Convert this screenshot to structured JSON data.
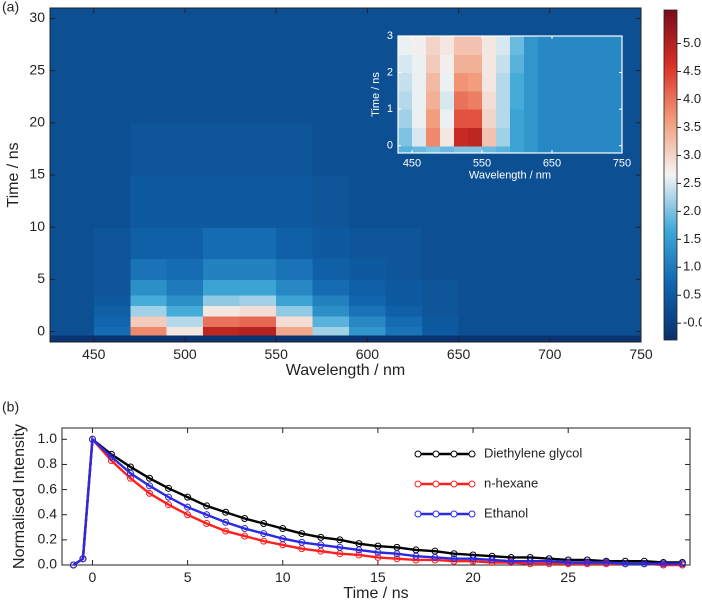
{
  "chart_data": [
    {
      "type": "heatmap",
      "panel_label": "(a)",
      "xlabel": "Wavelength / nm",
      "ylabel": "Time / ns",
      "xlim": [
        426,
        750
      ],
      "ylim": [
        -1,
        31
      ],
      "xticks": [
        450,
        500,
        550,
        600,
        650,
        700,
        750
      ],
      "yticks": [
        0,
        5,
        10,
        15,
        20,
        25,
        30
      ],
      "xbins": [
        426,
        450,
        470,
        490,
        510,
        530,
        550,
        570,
        590,
        610,
        630,
        650,
        670,
        690,
        710,
        730,
        750
      ],
      "ybins": [
        -1,
        -0.3,
        0.5,
        1.5,
        2.5,
        3.5,
        5,
        7,
        10,
        15,
        20,
        31
      ],
      "z": [
        [
          -0.2,
          -0.2,
          -0.2,
          -0.2,
          -0.2,
          -0.2,
          -0.2,
          -0.2,
          -0.2,
          -0.2,
          -0.2,
          -0.2,
          -0.2,
          -0.2,
          -0.2,
          -0.2
        ],
        [
          0.3,
          0.8,
          3.8,
          2.8,
          4.9,
          5.0,
          3.5,
          2.2,
          1.4,
          0.9,
          0.5,
          0.3,
          0.3,
          0.3,
          0.3,
          0.3
        ],
        [
          0.3,
          0.7,
          3.1,
          2.3,
          4.0,
          4.1,
          2.9,
          1.8,
          1.2,
          0.8,
          0.5,
          0.3,
          0.3,
          0.3,
          0.3,
          0.3
        ],
        [
          0.3,
          0.6,
          2.2,
          1.7,
          2.8,
          2.9,
          2.1,
          1.3,
          0.9,
          0.6,
          0.4,
          0.3,
          0.3,
          0.3,
          0.3,
          0.3
        ],
        [
          0.3,
          0.5,
          1.7,
          1.3,
          2.1,
          2.2,
          1.6,
          1.1,
          0.7,
          0.5,
          0.4,
          0.3,
          0.3,
          0.3,
          0.3,
          0.3
        ],
        [
          0.3,
          0.4,
          1.3,
          1.0,
          1.6,
          1.6,
          1.2,
          0.8,
          0.6,
          0.5,
          0.4,
          0.3,
          0.3,
          0.3,
          0.3,
          0.3
        ],
        [
          0.3,
          0.4,
          0.9,
          0.8,
          1.1,
          1.1,
          0.9,
          0.6,
          0.5,
          0.4,
          0.3,
          0.3,
          0.3,
          0.3,
          0.3,
          0.3
        ],
        [
          0.3,
          0.4,
          0.6,
          0.6,
          0.8,
          0.8,
          0.6,
          0.5,
          0.4,
          0.4,
          0.3,
          0.3,
          0.3,
          0.3,
          0.3,
          0.3
        ],
        [
          0.3,
          0.3,
          0.5,
          0.5,
          0.5,
          0.5,
          0.5,
          0.4,
          0.3,
          0.3,
          0.3,
          0.3,
          0.3,
          0.3,
          0.3,
          0.3
        ],
        [
          0.3,
          0.3,
          0.4,
          0.4,
          0.4,
          0.4,
          0.4,
          0.3,
          0.3,
          0.3,
          0.3,
          0.3,
          0.3,
          0.3,
          0.3,
          0.3
        ],
        [
          0.3,
          0.3,
          0.3,
          0.3,
          0.3,
          0.3,
          0.3,
          0.3,
          0.3,
          0.3,
          0.3,
          0.3,
          0.3,
          0.3,
          0.3,
          0.3
        ]
      ],
      "clim": [
        -0.3,
        5.6
      ],
      "colormap": [
        "#0a2f6b",
        "#0f64ad",
        "#3fa8d8",
        "#f4f4f4",
        "#f29b7a",
        "#d93025",
        "#7a0c1c"
      ],
      "cticks": [
        {
          "value": 0,
          "label": "-0.0"
        },
        0.5,
        {
          "value": 1,
          "label": "1.0"
        },
        1.5,
        {
          "value": 2,
          "label": "2.0"
        },
        2.5,
        {
          "value": 3,
          "label": "3.0"
        },
        3.5,
        {
          "value": 4,
          "label": "4.0"
        },
        4.5,
        {
          "value": 5,
          "label": "5.0"
        }
      ],
      "inset": {
        "xlabel": "Wavelength / nm",
        "ylabel": "Time / ns",
        "xlim": [
          430,
          750
        ],
        "ylim": [
          -0.2,
          3
        ],
        "xticks": [
          450,
          550,
          650,
          750
        ],
        "yticks": [
          0,
          1,
          2,
          3
        ],
        "xbins": [
          430,
          450,
          470,
          490,
          510,
          530,
          550,
          570,
          590,
          610,
          630,
          650,
          670,
          690,
          710,
          730,
          750
        ],
        "ybins": [
          -0.2,
          0,
          0.5,
          1,
          1.5,
          2,
          2.5,
          3
        ],
        "z": [
          [
            1.8,
            1.9,
            2.0,
            1.9,
            2.0,
            2.0,
            1.9,
            1.8,
            1.6,
            1.4,
            1.2,
            1.2,
            1.2,
            1.2,
            1.2,
            1.2
          ],
          [
            2.0,
            2.5,
            3.8,
            2.8,
            4.8,
            4.9,
            3.2,
            2.2,
            1.6,
            1.4,
            1.2,
            1.2,
            1.2,
            1.2,
            1.2,
            1.2
          ],
          [
            2.2,
            2.6,
            3.6,
            2.6,
            4.3,
            4.3,
            3.0,
            2.3,
            1.6,
            1.4,
            1.2,
            1.2,
            1.2,
            1.2,
            1.2,
            1.2
          ],
          [
            2.3,
            2.6,
            3.4,
            2.5,
            4.0,
            3.9,
            2.9,
            2.3,
            1.7,
            1.4,
            1.2,
            1.2,
            1.2,
            1.2,
            1.2,
            1.2
          ],
          [
            2.4,
            2.6,
            3.3,
            2.6,
            3.7,
            3.6,
            2.8,
            2.3,
            1.7,
            1.4,
            1.2,
            1.2,
            1.2,
            1.2,
            1.2,
            1.2
          ],
          [
            2.5,
            2.6,
            3.1,
            2.7,
            3.4,
            3.4,
            2.8,
            2.4,
            1.8,
            1.4,
            1.2,
            1.2,
            1.2,
            1.2,
            1.2,
            1.2
          ],
          [
            2.6,
            2.7,
            3.0,
            2.8,
            3.2,
            3.2,
            2.8,
            2.5,
            1.9,
            1.4,
            1.2,
            1.2,
            1.2,
            1.2,
            1.2,
            1.2
          ]
        ]
      }
    },
    {
      "type": "line",
      "panel_label": "(b)",
      "xlabel": "Time / ns",
      "ylabel": "Normalised Intensity",
      "xlim": [
        -1.6,
        31.4
      ],
      "ylim": [
        0,
        1.09
      ],
      "xticks": [
        0,
        5,
        10,
        15,
        20,
        25
      ],
      "yticks": [
        {
          "value": 0,
          "label": "0.0"
        },
        0.2,
        0.4,
        0.6,
        0.8,
        {
          "value": 1,
          "label": "1.0"
        }
      ],
      "legend": "upper right",
      "x": [
        -1,
        -0.5,
        0,
        1,
        2,
        3,
        4,
        5,
        6,
        7,
        8,
        9,
        10,
        11,
        12,
        13,
        14,
        15,
        16,
        17,
        18,
        19,
        20,
        21,
        22,
        23,
        24,
        25,
        26,
        27,
        28,
        29,
        30,
        31
      ],
      "series": [
        {
          "name": "Diethylene glycol",
          "color": "#000000",
          "values": [
            0,
            0.05,
            1,
            0.88,
            0.78,
            0.69,
            0.61,
            0.54,
            0.47,
            0.42,
            0.37,
            0.33,
            0.29,
            0.25,
            0.22,
            0.2,
            0.17,
            0.15,
            0.14,
            0.12,
            0.11,
            0.09,
            0.08,
            0.07,
            0.06,
            0.06,
            0.05,
            0.04,
            0.04,
            0.03,
            0.03,
            0.03,
            0.02,
            0.02
          ]
        },
        {
          "name": "n-hexane",
          "color": "#ff2020",
          "values": [
            0,
            0.05,
            1,
            0.83,
            0.69,
            0.57,
            0.48,
            0.4,
            0.33,
            0.27,
            0.23,
            0.19,
            0.16,
            0.13,
            0.11,
            0.09,
            0.08,
            0.06,
            0.05,
            0.04,
            0.04,
            0.03,
            0.03,
            0.02,
            0.02,
            0.01,
            0.01,
            0.01,
            0.01,
            0.01,
            0.01,
            0.01,
            0,
            0
          ]
        },
        {
          "name": "Ethanol",
          "color": "#2a2ae0",
          "values": [
            0,
            0.05,
            1,
            0.86,
            0.73,
            0.63,
            0.54,
            0.46,
            0.4,
            0.34,
            0.29,
            0.25,
            0.21,
            0.18,
            0.16,
            0.14,
            0.12,
            0.1,
            0.09,
            0.07,
            0.06,
            0.05,
            0.05,
            0.04,
            0.03,
            0.03,
            0.03,
            0.02,
            0.02,
            0.02,
            0.01,
            0.01,
            0.01,
            0.01
          ]
        }
      ]
    }
  ]
}
